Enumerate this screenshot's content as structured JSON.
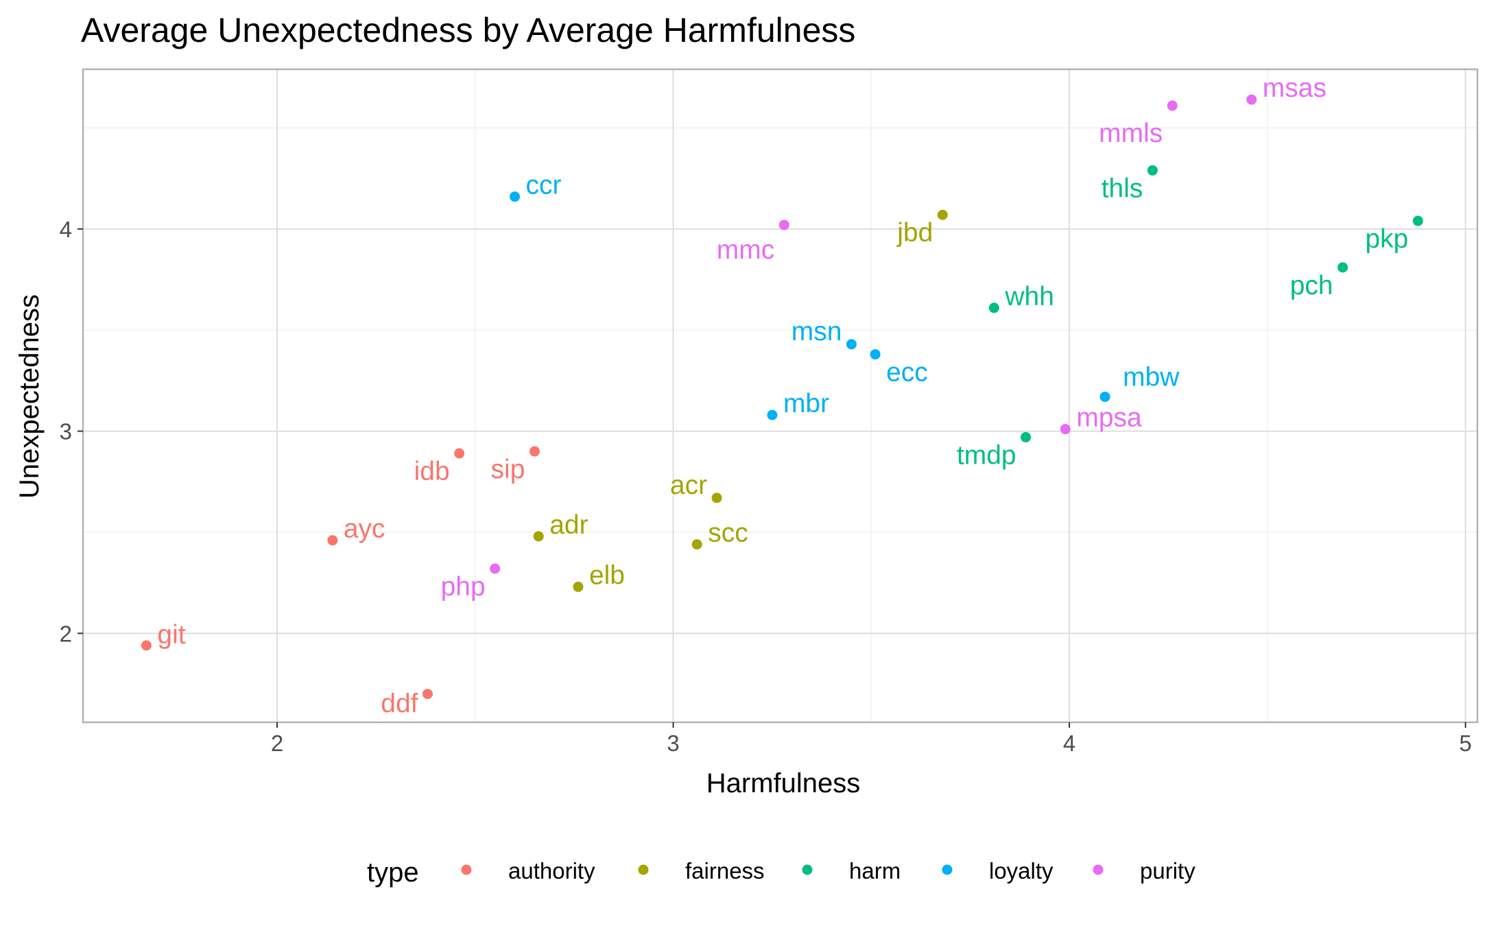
{
  "chart_data": {
    "type": "scatter",
    "title": "Average Unexpectedness by Average Harmfulness",
    "xlabel": "Harmfulness",
    "ylabel": "Unexpectedness",
    "xlim": [
      1.51,
      5.03
    ],
    "ylim": [
      1.56,
      4.79
    ],
    "xticks": [
      2,
      3,
      4,
      5
    ],
    "yticks": [
      2,
      3,
      4
    ],
    "grid": true,
    "legend": {
      "title": "type",
      "position": "bottom"
    },
    "series": [
      {
        "name": "authority",
        "color": "#F8766D",
        "points": [
          {
            "label": "git",
            "x": 1.67,
            "y": 1.94
          },
          {
            "label": "ayc",
            "x": 2.14,
            "y": 2.46
          },
          {
            "label": "ddf",
            "x": 2.38,
            "y": 1.7
          },
          {
            "label": "idb",
            "x": 2.46,
            "y": 2.89
          },
          {
            "label": "sip",
            "x": 2.65,
            "y": 2.9
          }
        ]
      },
      {
        "name": "fairness",
        "color": "#A3A500",
        "points": [
          {
            "label": "adr",
            "x": 2.66,
            "y": 2.48
          },
          {
            "label": "elb",
            "x": 2.76,
            "y": 2.23
          },
          {
            "label": "scc",
            "x": 3.06,
            "y": 2.44
          },
          {
            "label": "acr",
            "x": 3.11,
            "y": 2.67
          },
          {
            "label": "jbd",
            "x": 3.68,
            "y": 4.07
          }
        ]
      },
      {
        "name": "harm",
        "color": "#00BF7D",
        "points": [
          {
            "label": "whh",
            "x": 3.81,
            "y": 3.61
          },
          {
            "label": "tmdp",
            "x": 3.89,
            "y": 2.97
          },
          {
            "label": "thls",
            "x": 4.21,
            "y": 4.29
          },
          {
            "label": "pch",
            "x": 4.69,
            "y": 3.81
          },
          {
            "label": "pkp",
            "x": 4.88,
            "y": 4.04
          }
        ]
      },
      {
        "name": "loyalty",
        "color": "#00B0F6",
        "points": [
          {
            "label": "ccr",
            "x": 2.6,
            "y": 4.16
          },
          {
            "label": "mbr",
            "x": 3.25,
            "y": 3.08
          },
          {
            "label": "msn",
            "x": 3.45,
            "y": 3.43
          },
          {
            "label": "ecc",
            "x": 3.51,
            "y": 3.38
          },
          {
            "label": "mbw",
            "x": 4.09,
            "y": 3.17
          }
        ]
      },
      {
        "name": "purity",
        "color": "#E76BF3",
        "points": [
          {
            "label": "php",
            "x": 2.55,
            "y": 2.32
          },
          {
            "label": "mmc",
            "x": 3.28,
            "y": 4.02
          },
          {
            "label": "mpsa",
            "x": 3.99,
            "y": 3.01
          },
          {
            "label": "mmls",
            "x": 4.26,
            "y": 4.61
          },
          {
            "label": "msas",
            "x": 4.46,
            "y": 4.64
          }
        ]
      }
    ]
  }
}
